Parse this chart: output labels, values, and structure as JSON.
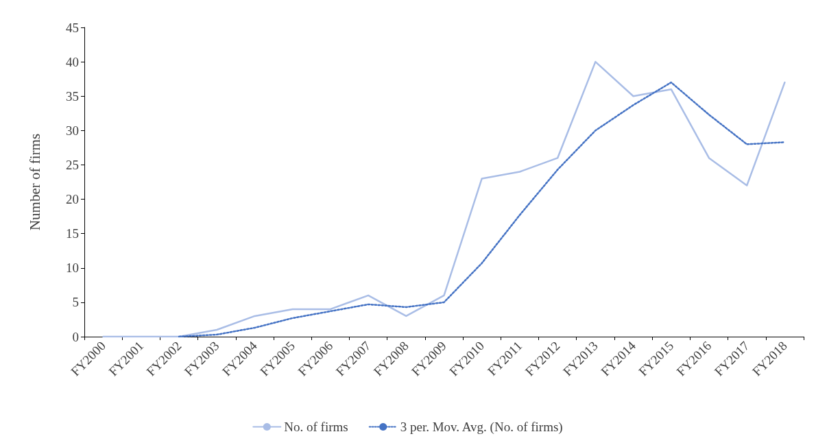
{
  "chart_data": {
    "type": "line",
    "ylabel": "Number of firms",
    "categories": [
      "FY2000",
      "FY2001",
      "FY2002",
      "FY2003",
      "FY2004",
      "FY2005",
      "FY2006",
      "FY2007",
      "FY2008",
      "FY2009",
      "FY2010",
      "FY2011",
      "FY2012",
      "FY2013",
      "FY2014",
      "FY2015",
      "FY2016",
      "FY2017",
      "FY2018"
    ],
    "series": [
      {
        "name": "No. of firms",
        "color": "#a9bde6",
        "line_style": "solid",
        "values": [
          0,
          0,
          0,
          1,
          3,
          4,
          4,
          6,
          3,
          6,
          23,
          24,
          26,
          40,
          35,
          36,
          26,
          22,
          37
        ]
      },
      {
        "name": "3 per. Mov. Avg. (No. of firms)",
        "color": "#4472c4",
        "line_style": "dotted",
        "values": [
          null,
          null,
          0,
          0.3,
          1.3,
          2.7,
          3.7,
          4.7,
          4.3,
          5,
          10.7,
          17.7,
          24.3,
          30,
          33.7,
          37,
          32.3,
          28,
          28.3
        ]
      }
    ],
    "ylim": [
      0,
      45
    ],
    "yticks": [
      0,
      5,
      10,
      15,
      20,
      25,
      30,
      35,
      40,
      45
    ],
    "grid": false,
    "legend": "bottom",
    "marker": "none"
  }
}
